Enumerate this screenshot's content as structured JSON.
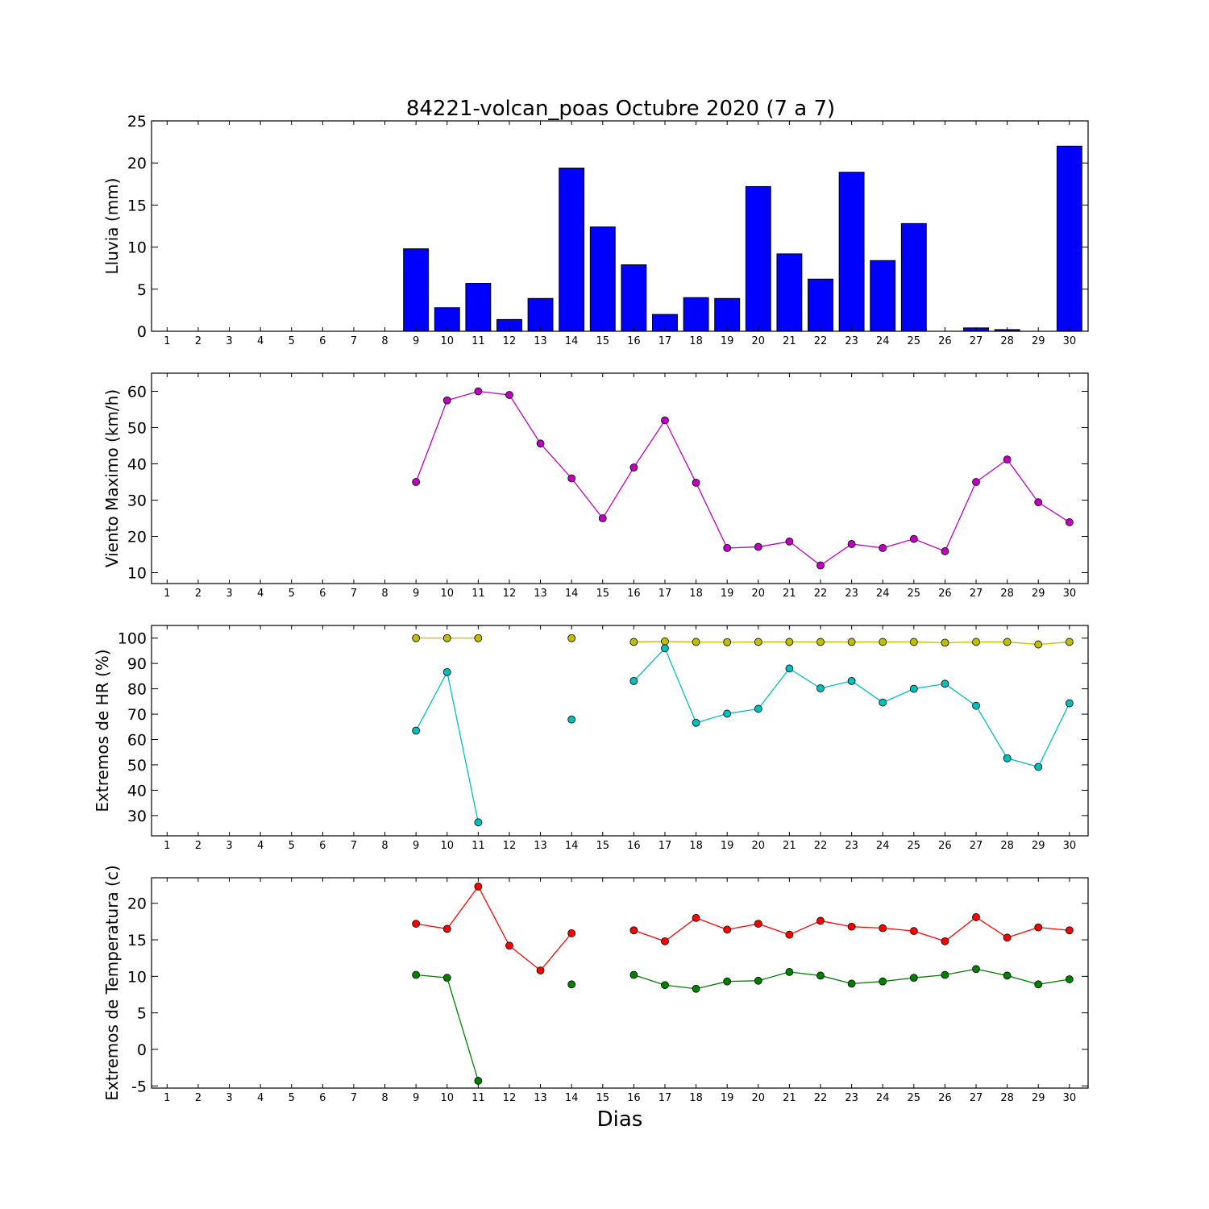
{
  "chart_data": {
    "title": "84221-volcan_poas Octubre 2020  (7 a 7)",
    "xlabel": "Dias",
    "days": [
      1,
      2,
      3,
      4,
      5,
      6,
      7,
      8,
      9,
      10,
      11,
      12,
      13,
      14,
      15,
      16,
      17,
      18,
      19,
      20,
      21,
      22,
      23,
      24,
      25,
      26,
      27,
      28,
      29,
      30
    ],
    "panels": [
      {
        "id": "lluvia",
        "type": "bar",
        "ylabel": "Lluvia (mm)",
        "ylim": [
          0,
          25
        ],
        "yticks": [
          0,
          5,
          10,
          15,
          20,
          25
        ],
        "series": [
          {
            "color": "#0000ff",
            "values": [
              null,
              null,
              null,
              null,
              null,
              null,
              null,
              null,
              9.8,
              2.8,
              5.7,
              1.4,
              3.9,
              19.4,
              12.4,
              7.9,
              2.0,
              4.0,
              3.9,
              17.2,
              9.2,
              6.2,
              18.9,
              8.4,
              12.8,
              0.0,
              0.4,
              0.2,
              0.0,
              22.0
            ]
          }
        ]
      },
      {
        "id": "viento",
        "type": "line",
        "ylabel": "Viento Maximo (km/h)",
        "ylim": [
          7,
          65
        ],
        "yticks": [
          10,
          20,
          30,
          40,
          50,
          60
        ],
        "series": [
          {
            "color": "#bf00bf",
            "values": [
              null,
              null,
              null,
              null,
              null,
              null,
              null,
              null,
              35.0,
              57.5,
              60.0,
              59.0,
              45.6,
              36.0,
              25.0,
              39.0,
              52.0,
              34.8,
              16.8,
              17.1,
              18.6,
              12.0,
              17.9,
              16.8,
              19.3,
              15.9,
              35.0,
              41.2,
              29.4,
              23.9
            ]
          }
        ]
      },
      {
        "id": "hr",
        "type": "line",
        "ylabel": "Extremos de HR (%)",
        "ylim": [
          22,
          105
        ],
        "yticks": [
          30,
          40,
          50,
          60,
          70,
          80,
          90,
          100
        ],
        "series": [
          {
            "color": "#bfbf00",
            "values": [
              null,
              null,
              null,
              null,
              null,
              null,
              null,
              null,
              100,
              100,
              100,
              null,
              null,
              100,
              null,
              98.5,
              98.7,
              98.5,
              98.4,
              98.5,
              98.5,
              98.5,
              98.5,
              98.5,
              98.5,
              98.2,
              98.5,
              98.5,
              97.5,
              98.5
            ]
          },
          {
            "color": "#00bfbf",
            "values": [
              null,
              null,
              null,
              null,
              null,
              null,
              null,
              null,
              63.5,
              86.6,
              27.3,
              null,
              null,
              67.9,
              null,
              83.1,
              96.0,
              66.6,
              70.2,
              72.1,
              88.0,
              80.2,
              83.1,
              74.6,
              80.0,
              82.0,
              73.3,
              52.6,
              49.2,
              74.3
            ]
          }
        ]
      },
      {
        "id": "temp",
        "type": "line",
        "ylabel": "Extremos de Temperatura (c)",
        "ylim": [
          -5.3,
          23.5
        ],
        "yticks": [
          -5,
          0,
          5,
          10,
          15,
          20
        ],
        "series": [
          {
            "color": "#ff0000",
            "values": [
              null,
              null,
              null,
              null,
              null,
              null,
              null,
              null,
              17.2,
              16.5,
              22.3,
              14.2,
              10.8,
              15.9,
              null,
              16.3,
              14.8,
              18.0,
              16.4,
              17.2,
              15.7,
              17.6,
              16.8,
              16.6,
              16.2,
              14.8,
              18.1,
              15.3,
              16.7,
              16.3
            ]
          },
          {
            "color": "#008000",
            "values": [
              null,
              null,
              null,
              null,
              null,
              null,
              null,
              null,
              10.2,
              9.8,
              -4.3,
              null,
              null,
              8.9,
              null,
              10.2,
              8.8,
              8.3,
              9.3,
              9.4,
              10.6,
              10.1,
              9.0,
              9.3,
              9.8,
              10.2,
              11.0,
              10.1,
              8.9,
              9.6
            ]
          }
        ]
      }
    ]
  }
}
